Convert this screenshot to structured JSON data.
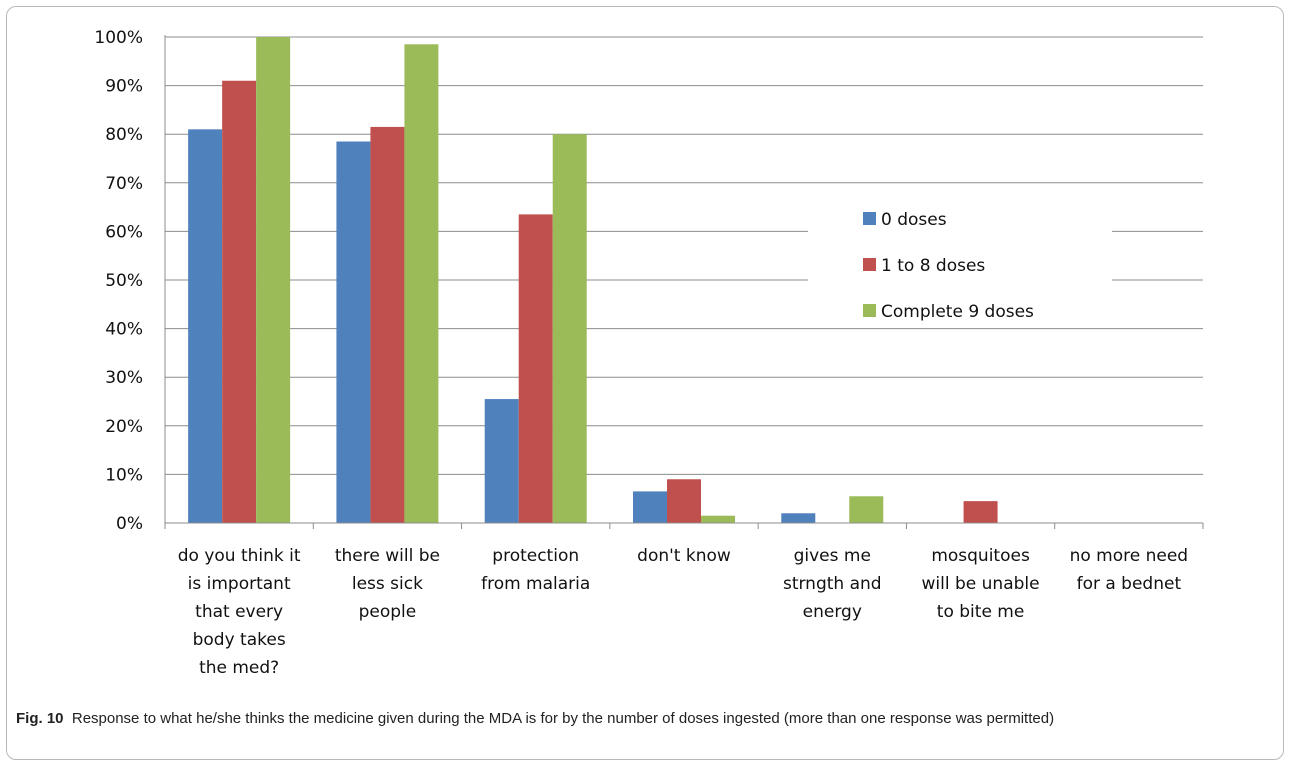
{
  "chart_data": {
    "type": "bar",
    "categories": [
      [
        "do you think it",
        "is important",
        "that every",
        "body takes",
        "the med?"
      ],
      [
        "there will be",
        "less sick",
        "people"
      ],
      [
        "protection",
        "from malaria"
      ],
      [
        "don't know"
      ],
      [
        "gives me",
        "strngth and",
        "energy"
      ],
      [
        "mosquitoes",
        "will be unable",
        "to bite me"
      ],
      [
        "no more need",
        "for a bednet"
      ]
    ],
    "series": [
      {
        "name": "0 doses",
        "color": "#4f81bd",
        "values": [
          81,
          78.5,
          25.5,
          6.5,
          2,
          0,
          0
        ]
      },
      {
        "name": "1 to 8 doses",
        "color": "#c0504d",
        "values": [
          91,
          81.5,
          63.5,
          9,
          0,
          4.5,
          0
        ]
      },
      {
        "name": "Complete 9 doses",
        "color": "#9bbb59",
        "values": [
          100,
          98.5,
          80,
          1.5,
          5.5,
          0,
          0
        ]
      }
    ],
    "y_ticks": [
      "0%",
      "10%",
      "20%",
      "30%",
      "40%",
      "50%",
      "60%",
      "70%",
      "80%",
      "90%",
      "100%"
    ],
    "ylim": [
      0,
      100
    ],
    "grid": true,
    "legend_position": "right, inside plot"
  },
  "caption": {
    "label": "Fig. 10",
    "text": "Response to what he/she thinks the medicine given during the MDA is for by the number of doses ingested (more than one response was permitted)"
  }
}
